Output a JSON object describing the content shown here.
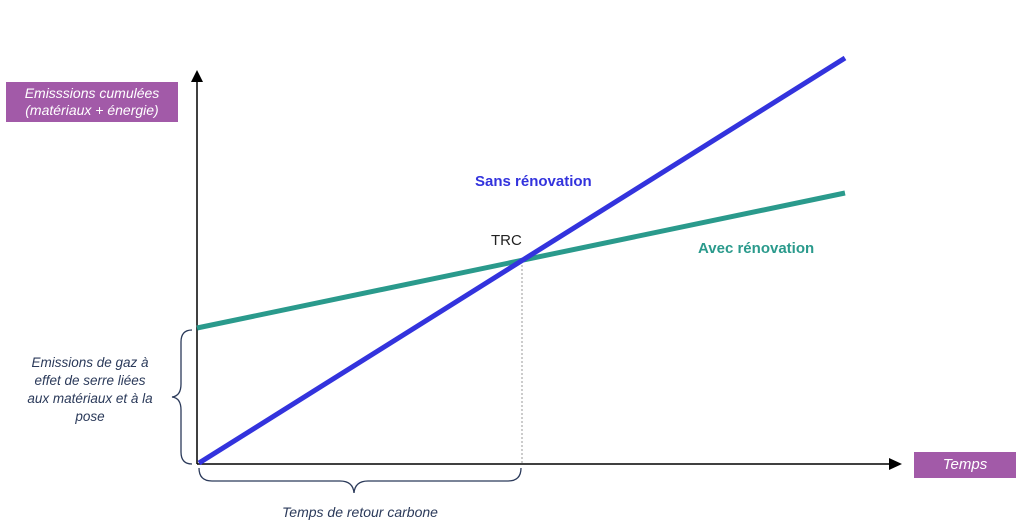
{
  "axes": {
    "y_label": "Emisssions cumulées\n(matériaux + énergie)",
    "x_label": "Temps"
  },
  "series": {
    "sans_renovation": {
      "label": "Sans rénovation",
      "color": "#3333dd"
    },
    "avec_renovation": {
      "label": "Avec rénovation",
      "color": "#2a9a8c"
    }
  },
  "intersection": {
    "label": "TRC"
  },
  "annotations": {
    "initial_emissions": "Emissions de gaz à effet de serre liées aux matériaux et à la pose",
    "payback_time": "Temps de retour carbone"
  }
}
